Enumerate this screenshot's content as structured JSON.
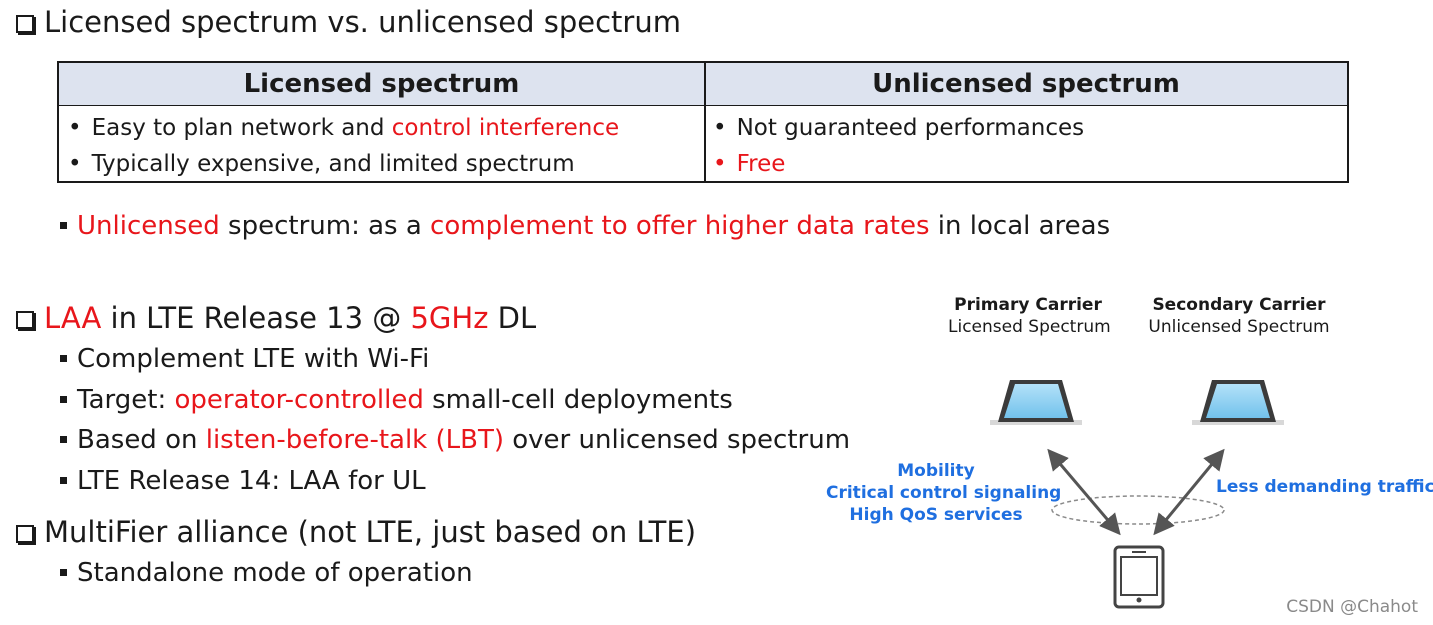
{
  "section1": {
    "heading": "Licensed spectrum vs. unlicensed spectrum"
  },
  "table": {
    "headers": [
      "Licensed spectrum",
      "Unlicensed spectrum"
    ],
    "licensed": {
      "line1_plain": "Easy to plan network and ",
      "line1_red": "control interference",
      "line2": "Typically expensive, and limited spectrum"
    },
    "unlicensed": {
      "line1": "Not guaranteed performances",
      "line2_red": "Free"
    }
  },
  "note": {
    "red1": "Unlicensed",
    "plain1": " spectrum: as a ",
    "red2": "complement to offer higher data rates",
    "plain2": " in local areas"
  },
  "section2": {
    "heading_red1": "LAA",
    "heading_plain1": " in LTE Release 13 @ ",
    "heading_red2": "5GHz",
    "heading_plain2": " DL",
    "bullets": {
      "b1": "Complement LTE with Wi-Fi",
      "b2_plain1": "Target: ",
      "b2_red": "operator-controlled",
      "b2_plain2": " small-cell deployments",
      "b3_plain1": "Based on ",
      "b3_red": "listen-before-talk (LBT)",
      "b3_plain2": " over unlicensed spectrum",
      "b4": "LTE Release 14: LAA for UL"
    }
  },
  "section3": {
    "heading": "MultiFier alliance (not LTE, just based on LTE)",
    "bullets": [
      "Standalone mode of operation"
    ]
  },
  "diagram": {
    "primary_title": "Primary Carrier",
    "primary_sub": "Licensed Spectrum",
    "secondary_title": "Secondary Carrier",
    "secondary_sub": "Unlicensed Spectrum",
    "left_labels": [
      "Mobility",
      "Critical control signaling",
      "High QoS services"
    ],
    "right_label": "Less demanding traffic",
    "colors": {
      "screen_fill": "#8fd0f3",
      "label_blue": "#1f6fe0"
    }
  },
  "watermark": "CSDN @Chahot",
  "colors": {
    "accent_red": "#e8161b",
    "table_header_bg": "#dde3ef"
  }
}
